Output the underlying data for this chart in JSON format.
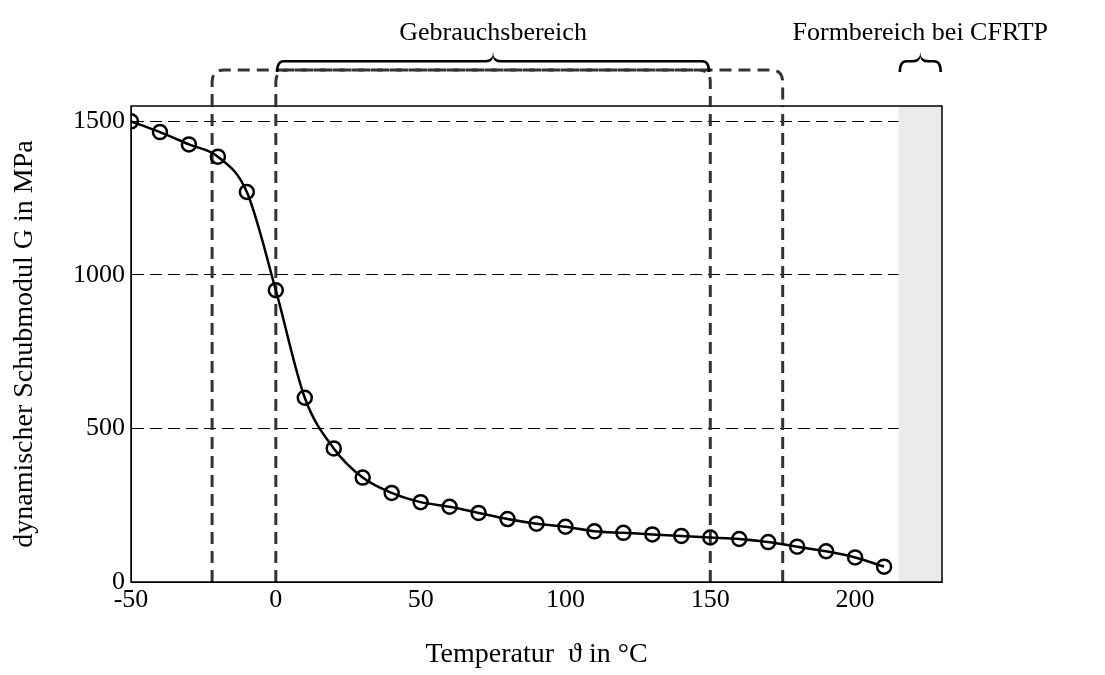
{
  "chart_data": {
    "type": "line",
    "xlabel": "Temperatur  ϑ in °C",
    "ylabel": "dynamischer Schubmodul G in MPa",
    "annotations": [
      "Gebrauchsbereich"
    ],
    "x": [
      -50,
      -40,
      -30,
      -20,
      -10,
      0,
      10,
      20,
      30,
      40,
      50,
      60,
      70,
      80,
      90,
      100,
      110,
      120,
      130,
      140,
      150,
      160,
      170,
      180,
      190,
      200,
      210
    ],
    "series": [
      {
        "color": "#000000",
        "values": [
          1500,
          1465,
          1425,
          1385,
          1270,
          950,
          600,
          435,
          340,
          290,
          260,
          245,
          225,
          205,
          190,
          180,
          165,
          160,
          155,
          150,
          145,
          140,
          130,
          115,
          100,
          80,
          50
        ]
      }
    ],
    "xlim": [
      -50,
      230
    ],
    "xticks": [
      -50,
      0,
      50,
      100,
      150,
      200
    ],
    "ylim": [
      0,
      1550
    ],
    "yticks": [
      0,
      500,
      1000,
      1500
    ],
    "grid": "y",
    "legend": false,
    "marker": "circle",
    "line_style": "solid",
    "ref_lines": [
      {
        "axis": "x",
        "value": -22,
        "color": "#333333",
        "line_style": "dashed"
      },
      {
        "axis": "x",
        "value": 0,
        "color": "#333333",
        "line_style": "dashed"
      },
      {
        "axis": "x",
        "value": 150,
        "color": "#333333",
        "line_style": "dashed"
      },
      {
        "axis": "x",
        "value": 175,
        "color": "#333333",
        "line_style": "dashed"
      }
    ],
    "bands": [
      {
        "axis": "x",
        "from": 215,
        "to": 230,
        "color": "#ebebeb",
        "label": "Formbereich bei CFRTP"
      }
    ]
  }
}
